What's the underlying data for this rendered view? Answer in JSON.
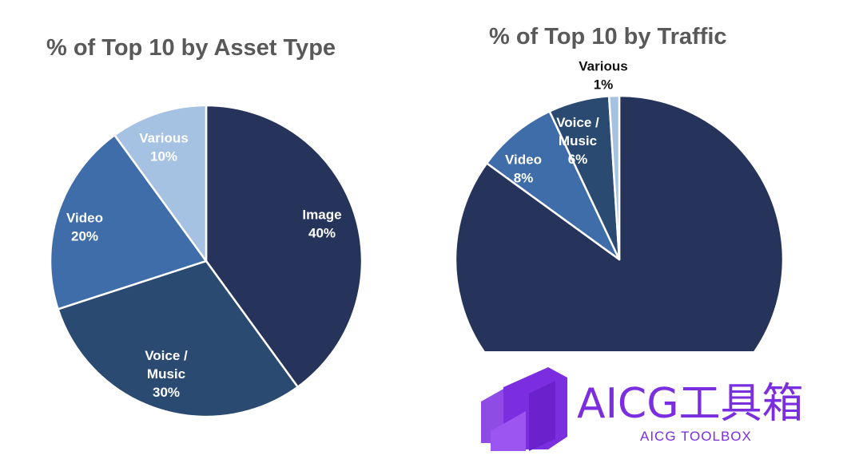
{
  "chart_data": [
    {
      "type": "pie",
      "title": "% of Top 10 by Asset Type",
      "slices": [
        {
          "label": "Image",
          "value": 40,
          "display": "40%",
          "color": "#26335a",
          "text_color": "#ffffff"
        },
        {
          "label": "Voice / Music",
          "value": 30,
          "display": "30%",
          "color": "#2a4a72",
          "text_color": "#ffffff"
        },
        {
          "label": "Video",
          "value": 20,
          "display": "20%",
          "color": "#3e6daa",
          "text_color": "#ffffff"
        },
        {
          "label": "Various",
          "value": 10,
          "display": "10%",
          "color": "#a6c2e2",
          "text_color": "#ffffff"
        }
      ]
    },
    {
      "type": "pie",
      "title": "% of Top 10 by Traffic",
      "slices": [
        {
          "label": "",
          "value": 85,
          "display": "",
          "color": "#26335a",
          "text_color": "#ffffff"
        },
        {
          "label": "Video",
          "value": 8,
          "display": "8%",
          "color": "#3e6daa",
          "text_color": "#ffffff"
        },
        {
          "label": "Voice / Music",
          "value": 6,
          "display": "6%",
          "color": "#2a4a72",
          "text_color": "#ffffff"
        },
        {
          "label": "Various",
          "value": 1,
          "display": "1%",
          "color": "#a6c2e2",
          "text_color": "#111111"
        }
      ]
    }
  ],
  "watermark": {
    "title": "AICG工具箱",
    "subtitle": "AICG TOOLBOX",
    "color": "#7b2de0"
  }
}
